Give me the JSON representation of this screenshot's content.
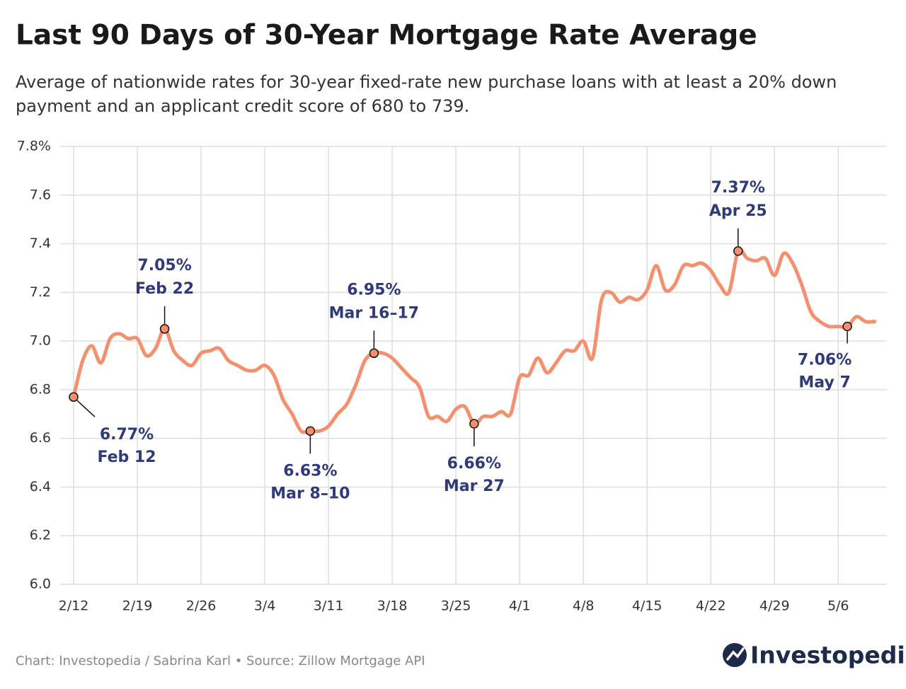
{
  "chart_data": {
    "type": "line",
    "title": "Last 90 Days of 30-Year Mortgage Rate Average",
    "subtitle": [
      "Average of nationwide rates for 30-year fixed-rate new purchase loans with at least a 20% down",
      "payment and an applicant credit score of 680 to 739."
    ],
    "categories": [
      "2/12",
      null,
      null,
      null,
      null,
      null,
      null,
      "2/19",
      null,
      null,
      null,
      null,
      null,
      null,
      "2/26",
      null,
      null,
      null,
      null,
      null,
      null,
      "3/4",
      null,
      null,
      null,
      null,
      null,
      null,
      "3/11",
      null,
      null,
      null,
      null,
      null,
      null,
      "3/18",
      null,
      null,
      null,
      null,
      null,
      null,
      "3/25",
      null,
      null,
      null,
      null,
      null,
      null,
      "4/1",
      null,
      null,
      null,
      null,
      null,
      null,
      "4/8",
      null,
      null,
      null,
      null,
      null,
      null,
      "4/15",
      null,
      null,
      null,
      null,
      null,
      null,
      "4/22",
      null,
      null,
      null,
      null,
      null,
      null,
      "4/29",
      null,
      null,
      null,
      null,
      null,
      null,
      "5/6",
      null,
      null,
      null,
      null
    ],
    "series": [
      {
        "name": "30-Year Mortgage Rate Average",
        "color": "#f4906e",
        "values": [
          6.77,
          6.92,
          6.98,
          6.91,
          7.01,
          7.03,
          7.01,
          7.01,
          6.94,
          6.97,
          7.05,
          6.96,
          6.92,
          6.9,
          6.95,
          6.96,
          6.97,
          6.92,
          6.9,
          6.88,
          6.88,
          6.9,
          6.86,
          6.76,
          6.7,
          6.63,
          6.63,
          6.63,
          6.65,
          6.7,
          6.74,
          6.82,
          6.92,
          6.95,
          6.95,
          6.93,
          6.89,
          6.85,
          6.81,
          6.69,
          6.69,
          6.67,
          6.72,
          6.73,
          6.66,
          6.69,
          6.69,
          6.71,
          6.7,
          6.85,
          6.86,
          6.93,
          6.87,
          6.91,
          6.96,
          6.96,
          7.0,
          6.93,
          7.17,
          7.2,
          7.16,
          7.18,
          7.17,
          7.21,
          7.31,
          7.21,
          7.23,
          7.31,
          7.31,
          7.32,
          7.29,
          7.23,
          7.2,
          7.37,
          7.34,
          7.33,
          7.34,
          7.27,
          7.36,
          7.32,
          7.23,
          7.12,
          7.08,
          7.06,
          7.06,
          7.06,
          7.1,
          7.08,
          7.08
        ]
      }
    ],
    "ylim": [
      6.0,
      7.8
    ],
    "yticks": [
      {
        "value": 6.0,
        "label": "6.0"
      },
      6.2,
      6.4,
      6.6,
      6.8,
      {
        "value": 7.0,
        "label": "7.0"
      },
      7.2,
      7.4,
      7.6,
      {
        "value": 7.8,
        "label": "7.8%"
      }
    ],
    "grid": true,
    "annotations": [
      {
        "index": 0,
        "value": 6.77,
        "label": "6.77%",
        "date": "Feb 12",
        "position": "below-right"
      },
      {
        "index": 10,
        "value": 7.05,
        "label": "7.05%",
        "date": "Feb 22",
        "position": "above"
      },
      {
        "index": 26,
        "value": 6.63,
        "label": "6.63%",
        "date": "Mar 8–10",
        "position": "below"
      },
      {
        "index": 33,
        "value": 6.95,
        "label": "6.95%",
        "date": "Mar 16–17",
        "position": "above"
      },
      {
        "index": 44,
        "value": 6.66,
        "label": "6.66%",
        "date": "Mar 27",
        "position": "below"
      },
      {
        "index": 73,
        "value": 7.37,
        "label": "7.37%",
        "date": "Apr 25",
        "position": "above"
      },
      {
        "index": 85,
        "value": 7.06,
        "label": "7.06%",
        "date": "May 7",
        "position": "below-left"
      }
    ],
    "source": "Chart: Investopedia / Sabrina Karl • Source: Zillow Mortgage API",
    "brand": "Investopedia"
  }
}
